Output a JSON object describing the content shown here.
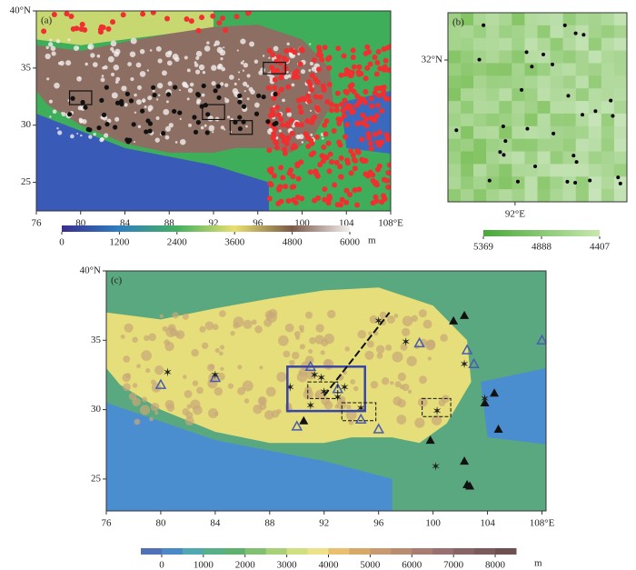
{
  "panel_a": {
    "label": "(a)",
    "xlim": [
      76,
      108
    ],
    "ylim": [
      22.5,
      40
    ],
    "xticks": [
      76,
      80,
      84,
      88,
      92,
      96,
      100,
      104,
      {
        "value": 108,
        "label": "108°E"
      }
    ],
    "yticks": [
      25,
      30,
      35,
      {
        "value": 40,
        "label": "40°N"
      }
    ],
    "colorbar": {
      "lim": [
        0,
        6000
      ],
      "ticks": [
        0,
        1200,
        2400,
        3600,
        4800,
        6000
      ],
      "unit": "m"
    }
  },
  "panel_b": {
    "label": "(b)",
    "xlim": [
      90.5,
      94.5
    ],
    "ylim": [
      29,
      33
    ],
    "xticks": [
      {
        "value": 92,
        "label": "92°E"
      }
    ],
    "yticks": [
      {
        "value": 32,
        "label": "32°N"
      }
    ],
    "colorbar": {
      "lim": [
        5369,
        4407
      ],
      "ticks": [
        5369,
        4888,
        4407
      ]
    }
  },
  "panel_c": {
    "label": "(c)",
    "xlim": [
      76,
      108.3
    ],
    "ylim": [
      22.7,
      40
    ],
    "xticks": [
      76,
      80,
      84,
      88,
      92,
      96,
      100,
      104,
      {
        "value": 108,
        "label": "108°E"
      }
    ],
    "yticks": [
      25,
      30,
      35,
      {
        "value": 40,
        "label": "40°N"
      }
    ],
    "colorbar": {
      "lim": [
        -500,
        8500
      ],
      "ticks": [
        0,
        1000,
        2000,
        3000,
        4000,
        5000,
        6000,
        7000,
        8000
      ],
      "unit": "m"
    }
  }
}
